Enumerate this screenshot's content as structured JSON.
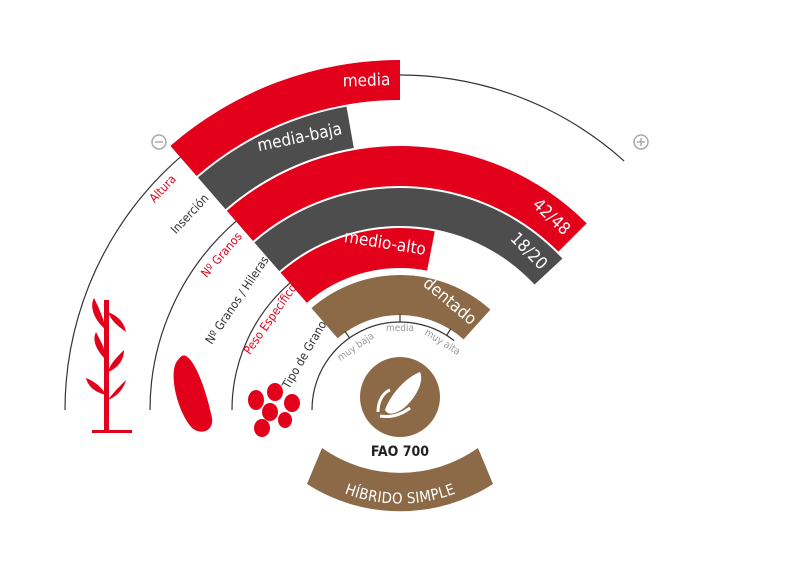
{
  "rows": [
    {
      "label": "Altura",
      "value": "media"
    },
    {
      "label": "Inserción",
      "value": "media-baja"
    },
    {
      "label": "Nº Granos",
      "value": "42/48"
    },
    {
      "label": "Nº Granos / Hileras",
      "value": "18/20"
    },
    {
      "label": "Peso Específico",
      "value": "medio-alto"
    },
    {
      "label": "Tipo de Grano",
      "value": "dentado"
    }
  ],
  "scale_labels": [
    "muy baja",
    "media",
    "muy alta"
  ],
  "product": {
    "fao": "FAO 700",
    "type": "HÍBRIDO SIMPLE"
  }
}
